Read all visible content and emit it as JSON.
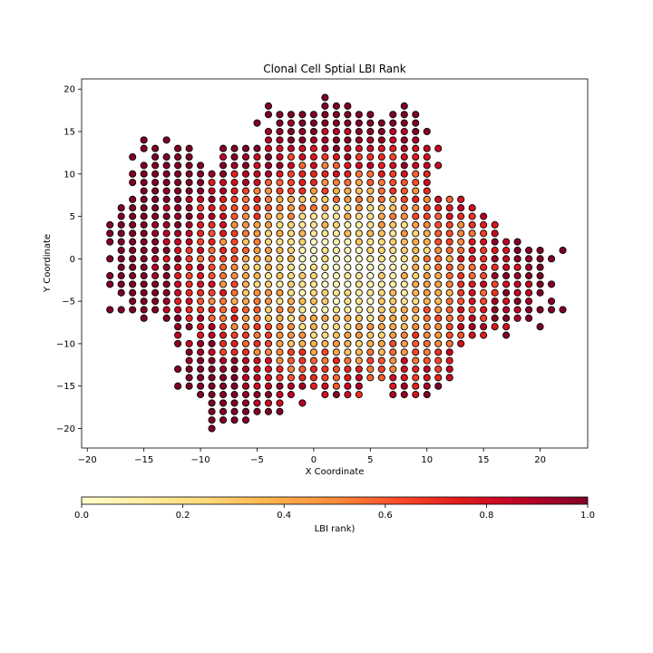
{
  "chart_data": {
    "type": "scatter",
    "title": "Clonal Cell Sptial LBI Rank",
    "xlabel": "X Coordinate",
    "ylabel": "Y Coordinate",
    "xlim": [
      -20.5,
      24.2
    ],
    "ylim": [
      -22.3,
      21.2
    ],
    "xticks": [
      "−20",
      "−15",
      "−10",
      "−5",
      "0",
      "5",
      "10",
      "15",
      "20"
    ],
    "xtick_values": [
      -20,
      -15,
      -10,
      -5,
      0,
      5,
      10,
      15,
      20
    ],
    "yticks": [
      "−20",
      "−15",
      "−10",
      "−5",
      "0",
      "5",
      "10",
      "15",
      "20"
    ],
    "ytick_values": [
      -20,
      -15,
      -10,
      -5,
      0,
      5,
      10,
      15,
      20
    ],
    "grid": false,
    "marker": "circle",
    "colormap": [
      "#ffffcc",
      "#ffeda0",
      "#fed976",
      "#feb24c",
      "#fd8d3c",
      "#fc4e2a",
      "#e31a1c",
      "#bd0026",
      "#800026"
    ],
    "colorbar": {
      "label": "LBI rank)",
      "range": [
        0,
        1
      ],
      "ticks": [
        "0.0",
        "0.2",
        "0.4",
        "0.6",
        "0.8",
        "1.0"
      ],
      "tick_values": [
        0,
        0.2,
        0.4,
        0.6,
        0.8,
        1.0
      ],
      "orientation": "horizontal"
    },
    "rows": [
      {
        "y": 19,
        "x": [
          1
        ]
      },
      {
        "y": 18,
        "x": [
          -4,
          1,
          2,
          3,
          8
        ]
      },
      {
        "y": 17,
        "x": [
          -4,
          -3,
          -2,
          -1,
          0,
          1,
          2,
          3,
          4,
          5,
          7,
          8,
          9
        ]
      },
      {
        "y": 16,
        "x": [
          -5,
          -3,
          -2,
          -1,
          0,
          1,
          2,
          3,
          4,
          5,
          6,
          7,
          8,
          9
        ]
      },
      {
        "y": 15,
        "x": [
          -4,
          -3,
          -2,
          -1,
          0,
          1,
          2,
          3,
          4,
          5,
          6,
          7,
          8,
          9,
          10
        ]
      },
      {
        "y": 14,
        "x": [
          -15,
          -13,
          -4,
          -3,
          -2,
          -1,
          0,
          1,
          2,
          3,
          4,
          5,
          6,
          7,
          8,
          9
        ]
      },
      {
        "y": 13,
        "x": [
          -15,
          -14,
          -12,
          -11,
          -8,
          -7,
          -6,
          -5,
          -4,
          -3,
          -2,
          -1,
          0,
          1,
          2,
          3,
          4,
          5,
          6,
          7,
          8,
          9,
          10,
          11
        ]
      },
      {
        "y": 12,
        "x": [
          -16,
          -14,
          -13,
          -12,
          -11,
          -8,
          -7,
          -6,
          -5,
          -4,
          -3,
          -2,
          -1,
          0,
          1,
          2,
          3,
          4,
          5,
          6,
          7,
          8,
          9,
          10
        ]
      },
      {
        "y": 11,
        "x": [
          -15,
          -14,
          -13,
          -12,
          -11,
          -10,
          -8,
          -7,
          -6,
          -5,
          -4,
          -3,
          -2,
          -1,
          0,
          1,
          2,
          3,
          4,
          5,
          6,
          7,
          8,
          9,
          10,
          11
        ]
      },
      {
        "y": 10,
        "x": [
          -16,
          -15,
          -14,
          -13,
          -12,
          -11,
          -10,
          -9,
          -8,
          -7,
          -6,
          -5,
          -4,
          -3,
          -2,
          -1,
          0,
          1,
          2,
          3,
          4,
          5,
          6,
          7,
          8,
          9,
          10
        ]
      },
      {
        "y": 9,
        "x": [
          -16,
          -15,
          -14,
          -13,
          -12,
          -11,
          -10,
          -9,
          -8,
          -7,
          -6,
          -5,
          -4,
          -3,
          -2,
          -1,
          0,
          1,
          2,
          3,
          4,
          5,
          6,
          7,
          8,
          9,
          10
        ]
      },
      {
        "y": 8,
        "x": [
          -15,
          -14,
          -13,
          -12,
          -11,
          -10,
          -9,
          -8,
          -7,
          -6,
          -5,
          -4,
          -3,
          -2,
          -1,
          0,
          1,
          2,
          3,
          4,
          5,
          6,
          7,
          8,
          9,
          10
        ]
      },
      {
        "y": 7,
        "x": [
          -16,
          -15,
          -14,
          -13,
          -12,
          -11,
          -10,
          -9,
          -8,
          -7,
          -6,
          -5,
          -4,
          -3,
          -2,
          -1,
          0,
          1,
          2,
          3,
          4,
          5,
          6,
          7,
          8,
          9,
          10,
          11,
          12,
          13
        ]
      },
      {
        "y": 6,
        "x": [
          -17,
          -16,
          -15,
          -14,
          -13,
          -12,
          -11,
          -10,
          -9,
          -8,
          -7,
          -6,
          -5,
          -4,
          -3,
          -2,
          -1,
          0,
          1,
          2,
          3,
          4,
          5,
          6,
          7,
          8,
          9,
          10,
          11,
          12,
          13,
          14
        ]
      },
      {
        "y": 5,
        "x": [
          -17,
          -16,
          -15,
          -14,
          -13,
          -12,
          -11,
          -10,
          -9,
          -8,
          -7,
          -6,
          -5,
          -4,
          -3,
          -2,
          -1,
          0,
          1,
          2,
          3,
          4,
          5,
          6,
          7,
          8,
          9,
          10,
          11,
          12,
          13,
          14,
          15
        ]
      },
      {
        "y": 4,
        "x": [
          -18,
          -17,
          -16,
          -15,
          -14,
          -13,
          -12,
          -11,
          -10,
          -9,
          -8,
          -7,
          -6,
          -5,
          -4,
          -3,
          -2,
          -1,
          0,
          1,
          2,
          3,
          4,
          5,
          6,
          7,
          8,
          9,
          10,
          11,
          12,
          13,
          14,
          15,
          16
        ]
      },
      {
        "y": 3,
        "x": [
          -18,
          -17,
          -16,
          -15,
          -14,
          -13,
          -12,
          -11,
          -10,
          -9,
          -8,
          -7,
          -6,
          -5,
          -4,
          -3,
          -2,
          -1,
          0,
          1,
          2,
          3,
          4,
          5,
          6,
          7,
          8,
          9,
          10,
          11,
          12,
          13,
          14,
          15,
          16
        ]
      },
      {
        "y": 2,
        "x": [
          -18,
          -17,
          -16,
          -15,
          -14,
          -13,
          -12,
          -11,
          -10,
          -9,
          -8,
          -7,
          -6,
          -5,
          -4,
          -3,
          -2,
          -1,
          0,
          1,
          2,
          3,
          4,
          5,
          6,
          7,
          8,
          9,
          10,
          11,
          12,
          13,
          14,
          15,
          16,
          17,
          18
        ]
      },
      {
        "y": 1,
        "x": [
          -17,
          -16,
          -15,
          -14,
          -13,
          -12,
          -11,
          -10,
          -9,
          -8,
          -7,
          -6,
          -5,
          -4,
          -3,
          -2,
          -1,
          0,
          1,
          2,
          3,
          4,
          5,
          6,
          7,
          8,
          9,
          10,
          11,
          12,
          13,
          14,
          15,
          16,
          17,
          18,
          19,
          20,
          22
        ]
      },
      {
        "y": 0,
        "x": [
          -18,
          -17,
          -16,
          -15,
          -14,
          -13,
          -12,
          -11,
          -10,
          -9,
          -8,
          -7,
          -6,
          -5,
          -4,
          -3,
          -2,
          -1,
          0,
          1,
          2,
          3,
          4,
          5,
          6,
          7,
          8,
          9,
          10,
          11,
          12,
          13,
          14,
          15,
          16,
          17,
          18,
          19,
          20,
          21
        ]
      },
      {
        "y": -1,
        "x": [
          -17,
          -16,
          -15,
          -14,
          -13,
          -12,
          -11,
          -10,
          -9,
          -8,
          -7,
          -6,
          -5,
          -4,
          -3,
          -2,
          -1,
          0,
          1,
          2,
          3,
          4,
          5,
          6,
          7,
          8,
          9,
          10,
          11,
          12,
          13,
          14,
          15,
          16,
          17,
          18,
          19,
          20
        ]
      },
      {
        "y": -2,
        "x": [
          -18,
          -17,
          -16,
          -15,
          -14,
          -13,
          -12,
          -11,
          -10,
          -9,
          -8,
          -7,
          -6,
          -5,
          -4,
          -3,
          -2,
          -1,
          0,
          1,
          2,
          3,
          4,
          5,
          6,
          7,
          8,
          9,
          10,
          11,
          12,
          13,
          14,
          15,
          16,
          17,
          18,
          19,
          20
        ]
      },
      {
        "y": -3,
        "x": [
          -18,
          -17,
          -16,
          -15,
          -14,
          -13,
          -12,
          -11,
          -10,
          -9,
          -8,
          -7,
          -6,
          -5,
          -4,
          -3,
          -2,
          -1,
          0,
          1,
          2,
          3,
          4,
          5,
          6,
          7,
          8,
          9,
          10,
          11,
          12,
          13,
          14,
          15,
          16,
          17,
          18,
          19,
          20,
          21
        ]
      },
      {
        "y": -4,
        "x": [
          -17,
          -16,
          -15,
          -14,
          -13,
          -12,
          -11,
          -10,
          -9,
          -8,
          -7,
          -6,
          -5,
          -4,
          -3,
          -2,
          -1,
          0,
          1,
          2,
          3,
          4,
          5,
          6,
          7,
          8,
          9,
          10,
          11,
          12,
          13,
          14,
          15,
          16,
          17,
          18,
          19,
          20
        ]
      },
      {
        "y": -5,
        "x": [
          -16,
          -15,
          -14,
          -13,
          -12,
          -11,
          -10,
          -9,
          -8,
          -7,
          -6,
          -5,
          -4,
          -3,
          -2,
          -1,
          0,
          1,
          2,
          3,
          4,
          5,
          6,
          7,
          8,
          9,
          10,
          11,
          12,
          13,
          14,
          15,
          16,
          17,
          18,
          19,
          21
        ]
      },
      {
        "y": -6,
        "x": [
          -18,
          -17,
          -16,
          -15,
          -14,
          -13,
          -12,
          -11,
          -10,
          -9,
          -8,
          -7,
          -6,
          -5,
          -4,
          -3,
          -2,
          -1,
          0,
          1,
          2,
          3,
          4,
          5,
          6,
          7,
          8,
          9,
          10,
          11,
          12,
          13,
          14,
          15,
          16,
          17,
          18,
          19,
          20,
          21,
          22
        ]
      },
      {
        "y": -7,
        "x": [
          -15,
          -13,
          -12,
          -11,
          -10,
          -9,
          -8,
          -7,
          -6,
          -5,
          -4,
          -3,
          -2,
          -1,
          0,
          1,
          2,
          3,
          4,
          5,
          6,
          7,
          8,
          9,
          10,
          11,
          12,
          13,
          14,
          15,
          16,
          17,
          18,
          19
        ]
      },
      {
        "y": -8,
        "x": [
          -12,
          -11,
          -10,
          -9,
          -8,
          -7,
          -6,
          -5,
          -4,
          -3,
          -2,
          -1,
          0,
          1,
          2,
          3,
          4,
          5,
          6,
          7,
          8,
          9,
          10,
          11,
          12,
          13,
          14,
          15,
          16,
          17,
          20
        ]
      },
      {
        "y": -9,
        "x": [
          -12,
          -10,
          -9,
          -8,
          -7,
          -6,
          -5,
          -4,
          -3,
          -2,
          -1,
          0,
          1,
          2,
          3,
          4,
          5,
          6,
          7,
          8,
          9,
          10,
          11,
          12,
          13,
          14,
          15,
          17
        ]
      },
      {
        "y": -10,
        "x": [
          -12,
          -11,
          -10,
          -9,
          -8,
          -7,
          -6,
          -5,
          -4,
          -3,
          -2,
          -1,
          0,
          1,
          2,
          3,
          4,
          5,
          6,
          7,
          8,
          9,
          10,
          11,
          12,
          13
        ]
      },
      {
        "y": -11,
        "x": [
          -11,
          -10,
          -9,
          -8,
          -7,
          -6,
          -5,
          -4,
          -3,
          -2,
          -1,
          0,
          1,
          2,
          3,
          4,
          5,
          6,
          7,
          8,
          9,
          10,
          11,
          12
        ]
      },
      {
        "y": -12,
        "x": [
          -11,
          -10,
          -9,
          -8,
          -7,
          -6,
          -5,
          -4,
          -3,
          -2,
          -1,
          0,
          1,
          2,
          3,
          4,
          5,
          6,
          7,
          8,
          9,
          10,
          11,
          12
        ]
      },
      {
        "y": -13,
        "x": [
          -12,
          -11,
          -10,
          -9,
          -8,
          -7,
          -6,
          -5,
          -4,
          -3,
          -2,
          -1,
          0,
          1,
          2,
          3,
          4,
          5,
          6,
          7,
          8,
          9,
          10,
          11,
          12
        ]
      },
      {
        "y": -14,
        "x": [
          -11,
          -10,
          -9,
          -8,
          -7,
          -6,
          -5,
          -4,
          -3,
          -2,
          -1,
          0,
          1,
          2,
          3,
          4,
          5,
          6,
          7,
          8,
          9,
          10,
          11,
          12
        ]
      },
      {
        "y": -15,
        "x": [
          -12,
          -11,
          -10,
          -9,
          -8,
          -7,
          -6,
          -5,
          -4,
          -3,
          -2,
          -1,
          0,
          1,
          2,
          3,
          4,
          7,
          8,
          9,
          10,
          11
        ]
      },
      {
        "y": -16,
        "x": [
          -10,
          -9,
          -8,
          -7,
          -6,
          -5,
          -4,
          -3,
          -2,
          1,
          2,
          3,
          4,
          7,
          8,
          9,
          10
        ]
      },
      {
        "y": -17,
        "x": [
          -9,
          -8,
          -7,
          -6,
          -5,
          -4,
          -3,
          -1
        ]
      },
      {
        "y": -18,
        "x": [
          -9,
          -8,
          -7,
          -6,
          -5,
          -4,
          -3
        ]
      },
      {
        "y": -19,
        "x": [
          -9,
          -8,
          -7,
          -6
        ]
      },
      {
        "y": -20,
        "x": [
          -9
        ]
      }
    ],
    "value_model": {
      "center": [
        2.5,
        -1.5
      ],
      "rx": 17.0,
      "ry": 17.5,
      "exponent": 1.25
    }
  }
}
